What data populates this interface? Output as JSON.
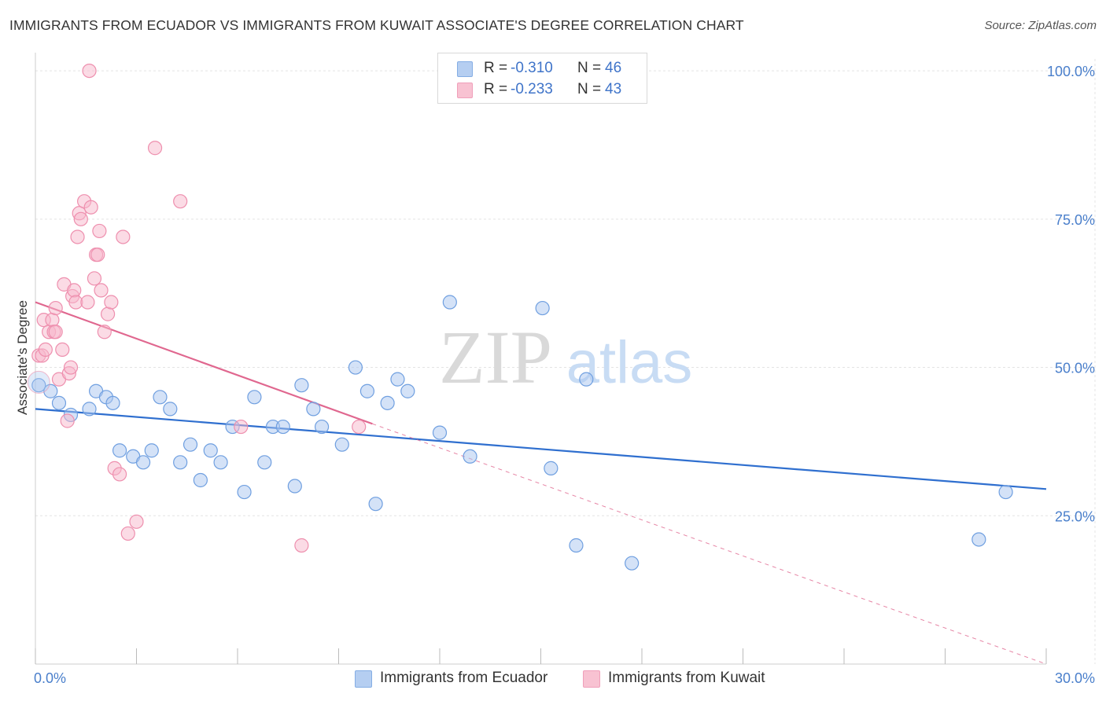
{
  "header": {
    "title": "IMMIGRANTS FROM ECUADOR VS IMMIGRANTS FROM KUWAIT ASSOCIATE'S DEGREE CORRELATION CHART",
    "source": "Source: ZipAtlas.com"
  },
  "watermark": {
    "zip": "ZIP",
    "atlas": "atlas"
  },
  "legend": {
    "r_label": "R =",
    "n_label": "N =",
    "ecuador": {
      "r": "-0.310",
      "n": "46"
    },
    "kuwait": {
      "r": "-0.233",
      "n": "43"
    }
  },
  "bottom_legend": {
    "ecuador_label": "Immigrants from Ecuador",
    "kuwait_label": "Immigrants from Kuwait"
  },
  "colors": {
    "ecuador_fill": "#a9c6ef",
    "ecuador_stroke": "#6f9fe0",
    "ecuador_line": "#2f6fcf",
    "kuwait_fill": "#f7b8cb",
    "kuwait_stroke": "#ee8fae",
    "kuwait_line": "#e0678f",
    "grid": "#e4e4e4",
    "tick_text": "#4a7fcb"
  },
  "chart_data": {
    "type": "scatter",
    "title": "IMMIGRANTS FROM ECUADOR VS IMMIGRANTS FROM KUWAIT ASSOCIATE'S DEGREE CORRELATION CHART",
    "xlabel": "",
    "ylabel": "Associate's Degree",
    "xlim": [
      0,
      30
    ],
    "ylim": [
      0,
      102
    ],
    "x_tick_labels": [
      "0.0%",
      "30.0%"
    ],
    "y_ticks": [
      25,
      50,
      75,
      100
    ],
    "y_tick_labels": [
      "25.0%",
      "50.0%",
      "75.0%",
      "100.0%"
    ],
    "grid": true,
    "series": [
      {
        "name": "Immigrants from Ecuador",
        "color_key": "ecuador",
        "points": [
          [
            0.1,
            47.0
          ],
          [
            0.45,
            46.0
          ],
          [
            0.7,
            44.0
          ],
          [
            1.05,
            42.0
          ],
          [
            1.6,
            43.0
          ],
          [
            1.8,
            46.0
          ],
          [
            2.1,
            45.0
          ],
          [
            2.3,
            44.0
          ],
          [
            2.5,
            36.0
          ],
          [
            2.9,
            35.0
          ],
          [
            3.2,
            34.0
          ],
          [
            3.45,
            36.0
          ],
          [
            3.7,
            45.0
          ],
          [
            4.0,
            43.0
          ],
          [
            4.3,
            34.0
          ],
          [
            4.6,
            37.0
          ],
          [
            4.9,
            31.0
          ],
          [
            5.2,
            36.0
          ],
          [
            5.5,
            34.0
          ],
          [
            5.85,
            40.0
          ],
          [
            6.2,
            29.0
          ],
          [
            6.5,
            45.0
          ],
          [
            6.8,
            34.0
          ],
          [
            7.05,
            40.0
          ],
          [
            7.35,
            40.0
          ],
          [
            7.7,
            30.0
          ],
          [
            7.9,
            47.0
          ],
          [
            8.25,
            43.0
          ],
          [
            8.5,
            40.0
          ],
          [
            9.1,
            37.0
          ],
          [
            9.5,
            50.0
          ],
          [
            9.85,
            46.0
          ],
          [
            10.1,
            27.0
          ],
          [
            10.45,
            44.0
          ],
          [
            10.75,
            48.0
          ],
          [
            11.05,
            46.0
          ],
          [
            12.0,
            39.0
          ],
          [
            12.3,
            61.0
          ],
          [
            12.9,
            35.0
          ],
          [
            15.05,
            60.0
          ],
          [
            15.3,
            33.0
          ],
          [
            16.05,
            20.0
          ],
          [
            16.35,
            48.0
          ],
          [
            17.7,
            17.0
          ],
          [
            28.0,
            21.0
          ],
          [
            28.8,
            29.0
          ]
        ],
        "trend": {
          "x0": 0,
          "y0": 43.0,
          "x1": 30,
          "y1": 29.5
        }
      },
      {
        "name": "Immigrants from Kuwait",
        "color_key": "kuwait",
        "points": [
          [
            0.1,
            52.0
          ],
          [
            0.2,
            52.0
          ],
          [
            0.25,
            58.0
          ],
          [
            0.3,
            53.0
          ],
          [
            0.4,
            56.0
          ],
          [
            0.5,
            58.0
          ],
          [
            0.55,
            56.0
          ],
          [
            0.6,
            60.0
          ],
          [
            0.6,
            56.0
          ],
          [
            0.7,
            48.0
          ],
          [
            0.8,
            53.0
          ],
          [
            0.85,
            64.0
          ],
          [
            0.95,
            41.0
          ],
          [
            1.0,
            49.0
          ],
          [
            1.05,
            50.0
          ],
          [
            1.1,
            62.0
          ],
          [
            1.15,
            63.0
          ],
          [
            1.2,
            61.0
          ],
          [
            1.25,
            72.0
          ],
          [
            1.3,
            76.0
          ],
          [
            1.35,
            75.0
          ],
          [
            1.45,
            78.0
          ],
          [
            1.55,
            61.0
          ],
          [
            1.6,
            100.0
          ],
          [
            1.65,
            77.0
          ],
          [
            1.75,
            65.0
          ],
          [
            1.8,
            69.0
          ],
          [
            1.85,
            69.0
          ],
          [
            1.9,
            73.0
          ],
          [
            1.95,
            63.0
          ],
          [
            2.05,
            56.0
          ],
          [
            2.15,
            59.0
          ],
          [
            2.25,
            61.0
          ],
          [
            2.35,
            33.0
          ],
          [
            2.5,
            32.0
          ],
          [
            2.6,
            72.0
          ],
          [
            2.75,
            22.0
          ],
          [
            3.0,
            24.0
          ],
          [
            3.55,
            87.0
          ],
          [
            4.3,
            78.0
          ],
          [
            6.1,
            40.0
          ],
          [
            7.9,
            20.0
          ],
          [
            9.6,
            40.0
          ]
        ],
        "trend": {
          "x0": 0,
          "y0": 61.0,
          "x1": 10.0,
          "y1": 40.5
        },
        "trend_extension": {
          "x0": 10.0,
          "y0": 40.5,
          "x1": 30,
          "y1": 0
        }
      }
    ]
  }
}
